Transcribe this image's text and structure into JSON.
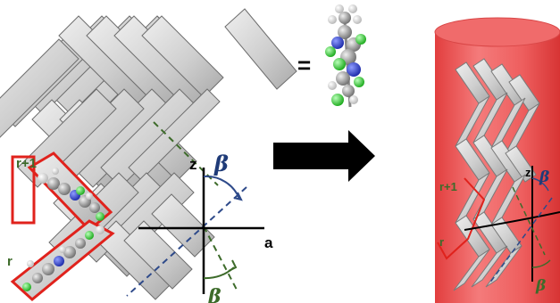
{
  "figure": {
    "equals_sign": "=",
    "left_panel": {
      "layer_labels": {
        "upper": "r+1",
        "lower": "r"
      },
      "axis_labels": {
        "vertical": "z",
        "horizontal": "a"
      },
      "angle_labels": {
        "top": "β",
        "bottom": "β"
      }
    },
    "right_panel": {
      "layer_labels": {
        "upper": "r+1",
        "lower": "r"
      },
      "axis_labels": {
        "vertical": "z"
      },
      "angle_labels": {
        "top": "β",
        "bottom": "β"
      }
    },
    "colors": {
      "plank_fill": "#d6d6d6",
      "plank_stroke": "#6e6e6e",
      "highlight_box": "#e0221c",
      "cylinder": "#ef5a5a",
      "arrow": "#000000",
      "axis_blue_dashed": "#2e4a8a",
      "axis_green_dashed": "#3d6b2a",
      "carbon": "#8a8a8a",
      "chlorine": "#2fd12f",
      "nitrogen": "#2b3fd8",
      "hydrogen": "#f2f2f2"
    }
  }
}
